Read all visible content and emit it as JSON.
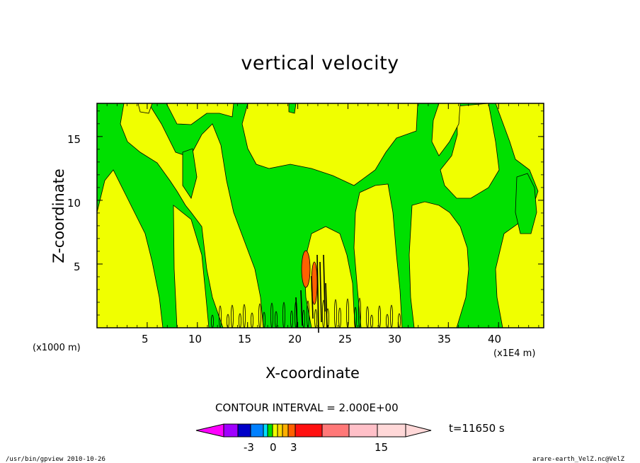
{
  "chart_data": {
    "type": "heatmap",
    "title": "vertical velocity",
    "xlabel": "X-coordinate",
    "ylabel": "Z-coordinate",
    "x_unit": "(x1000 m)",
    "x_scale_note": "(x1E4 m)",
    "x_ticks": [
      "5",
      "10",
      "15",
      "20",
      "25",
      "30",
      "35",
      "40"
    ],
    "y_ticks": [
      "5",
      "10",
      "15"
    ],
    "xlim": [
      0,
      44.5
    ],
    "ylim": [
      0,
      17.6
    ],
    "contour_interval_text": "CONTOUR INTERVAL = 2.000E+00",
    "time_label": "t=11650 s",
    "colorbar_labels": [
      "-3",
      "0",
      "3",
      "15"
    ],
    "colorbar_colors": [
      "#ff00ff",
      "#a000ff",
      "#0000c8",
      "#0080ff",
      "#00e0ff",
      "#00e000",
      "#f0ff00",
      "#ffd800",
      "#ffb000",
      "#ff6000",
      "#ff1010",
      "#ff7878",
      "#ffc0c8",
      "#ffd8d8"
    ],
    "field_colors": {
      "negative": "#00e000",
      "weak_positive": "#f0ff00",
      "strong_positive": "#ff6000",
      "line": "#000000"
    },
    "footer_left": "/usr/bin/gpview  2010-10-26",
    "footer_right": "arare-earth_VelZ.nc@VelZ"
  }
}
